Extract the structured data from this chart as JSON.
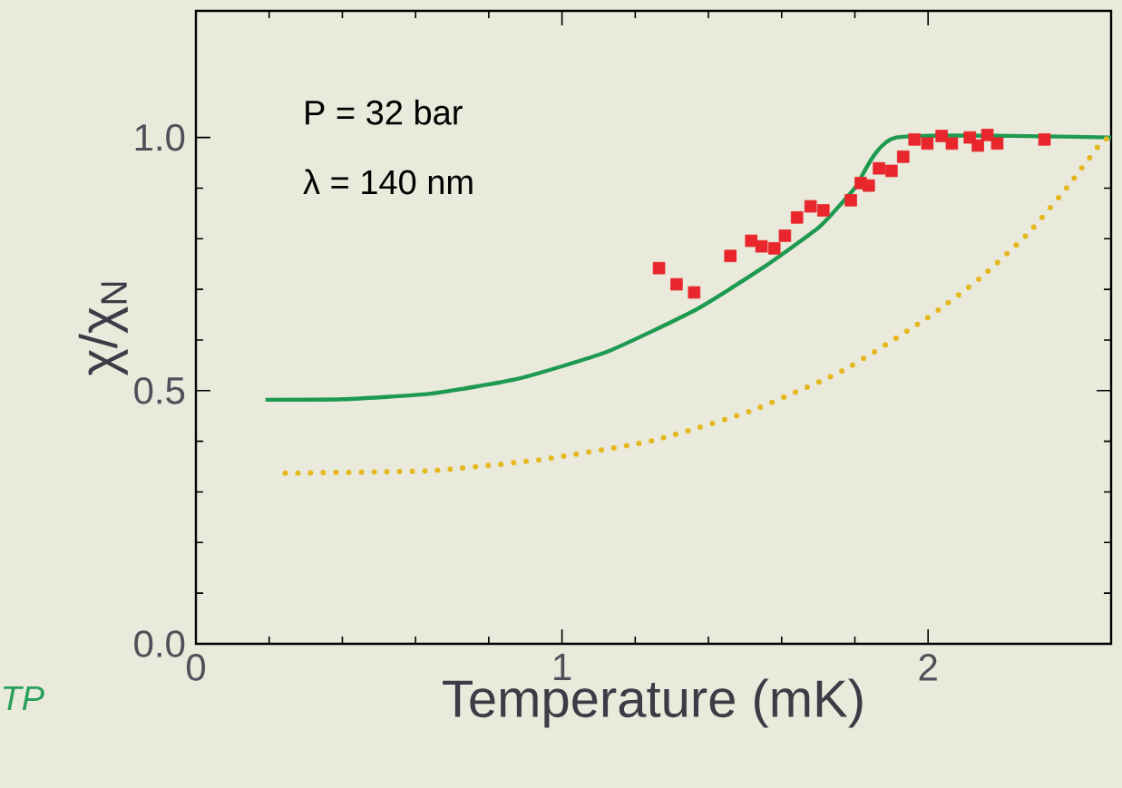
{
  "chart_data": {
    "type": "line",
    "xlabel": "Temperature (mK)",
    "ylabel": "χ/χ$_{N}$",
    "annotations": [
      "P = 32 bar",
      "λ = 140 nm",
      "TP"
    ],
    "xlim": [
      0,
      2.5
    ],
    "ylim": [
      0,
      1.25
    ],
    "xticks": [
      0,
      1,
      2
    ],
    "yticks": [
      {
        "value": 0,
        "label": "0.0"
      },
      {
        "value": 0.5,
        "label": "0.5"
      },
      {
        "value": 1,
        "label": "1.0"
      }
    ],
    "series": [
      {
        "type": "scatter",
        "marker": "square",
        "color": "#e8262b",
        "x": [
          1.265,
          1.313,
          1.361,
          1.46,
          1.517,
          1.545,
          1.58,
          1.609,
          1.642,
          1.679,
          1.714,
          1.789,
          1.816,
          1.838,
          1.866,
          1.9,
          1.932,
          1.963,
          1.998,
          2.037,
          2.065,
          2.114,
          2.136,
          2.162,
          2.189,
          2.318
        ],
        "values": [
          0.742,
          0.71,
          0.694,
          0.766,
          0.796,
          0.785,
          0.781,
          0.806,
          0.842,
          0.864,
          0.856,
          0.876,
          0.91,
          0.905,
          0.939,
          0.934,
          0.962,
          0.996,
          0.988,
          1.003,
          0.988,
          1.0,
          0.984,
          1.005,
          0.988,
          0.996
        ]
      },
      {
        "line_style": "solid",
        "color": "#1e9a50",
        "x": [
          0.19,
          0.4,
          0.642,
          0.883,
          1.124,
          1.366,
          1.547,
          1.704,
          1.8,
          1.913,
          2.5
        ],
        "values": [
          0.482,
          0.483,
          0.494,
          0.524,
          0.577,
          0.66,
          0.742,
          0.824,
          0.9,
          1.0,
          1.0
        ]
      },
      {
        "line_style": "dotted",
        "color": "#e6b820",
        "x": [
          0.244,
          0.642,
          0.944,
          1.246,
          1.512,
          1.766,
          1.995,
          2.14,
          2.274,
          2.388,
          2.473,
          2.5
        ],
        "values": [
          0.337,
          0.342,
          0.364,
          0.401,
          0.459,
          0.539,
          0.642,
          0.721,
          0.811,
          0.909,
          0.99,
          1.0
        ]
      }
    ]
  }
}
